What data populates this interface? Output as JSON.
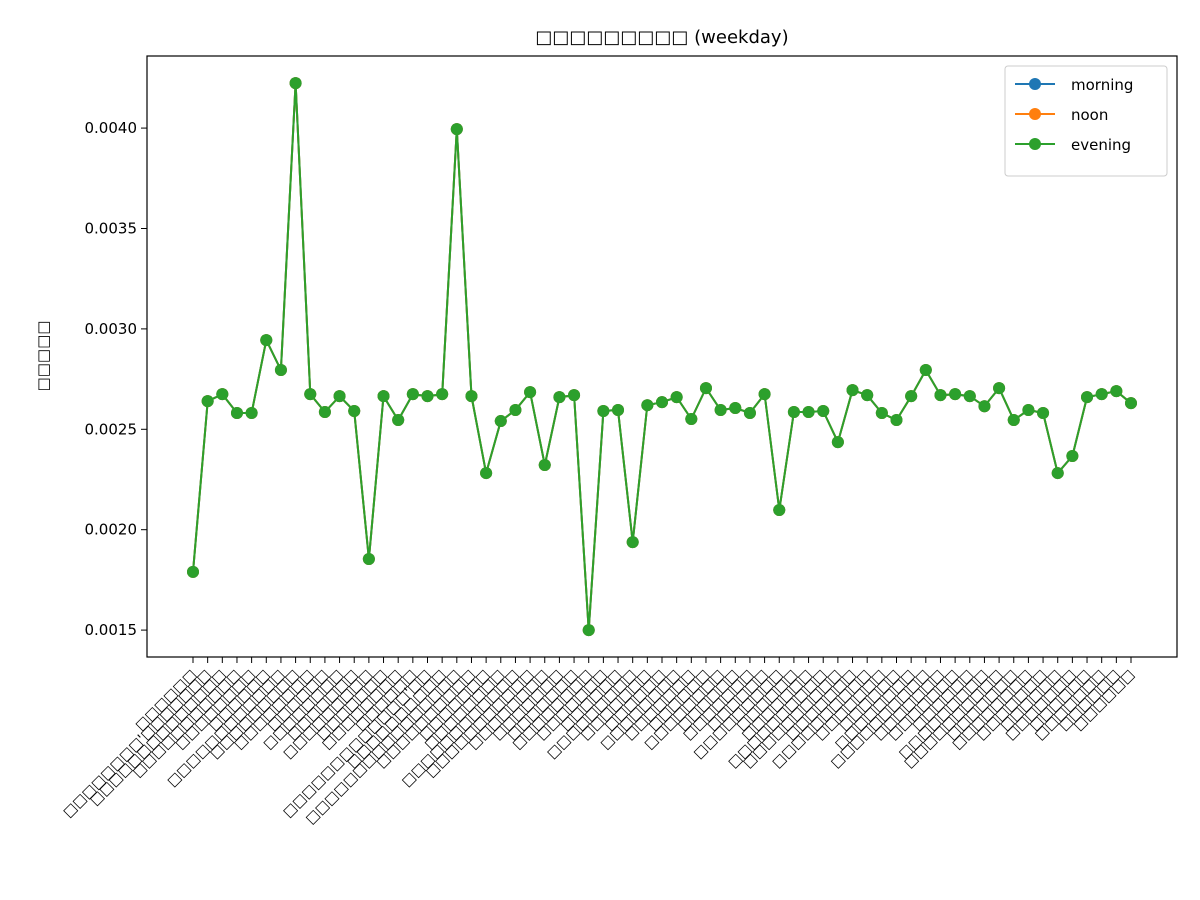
{
  "chart_data": {
    "type": "line",
    "title": "□□□□□□□□□ (weekday)",
    "y_label": "□□□□□",
    "categories": [
      "□□□□□□",
      "□□□□□□□□'□□□□□□□",
      "□□□□□□□□□□□□□□",
      "□□□□□□□□□□□",
      "□□□□□□□□",
      "□□□□□□",
      "□□□□□□□□□□□□",
      "□□□□□□□□□",
      "□□□□□□□□",
      "□□□□□□",
      "□□□□□□□□",
      "□□□□□□□",
      "□□□□□□□□□",
      "□□□□□□□",
      "□□□□□□□□",
      "□□□□□□",
      "□□□□□□□□□□□□□'□□",
      "□□□□□□□□□□",
      "□□□□□□□□□□□□□□□□",
      "□□□□□□□□□□",
      "□□□□□□□",
      "□□□□□□□□",
      "□□□□□□□□□□□□",
      "□□□□□□□□□□□",
      "□□□□□□□□",
      "□□□□□□□",
      "□□□□□□□",
      "□□□□□□□□",
      "□□□□□□□",
      "□□□□□□",
      "□□□□□□□□□",
      "□□□□□□□",
      "□□□□□□",
      "□□□□□□□□",
      "□□□□□□□",
      "□□□□□□",
      "□□□□□□□□",
      "□□□□□□",
      "□□□□□□□",
      "□□□□□□",
      "□□□□□□□□□",
      "□□□□□□",
      "□□□□□□□",
      "□□□□□□□□□□",
      "□□□□□□□□□□",
      "□□□□□□□",
      "□□□□□□□□□□",
      "□□□□□□□",
      "□□□□□□",
      "□□□□□□□□",
      "□□□□□□□□□□",
      "□□□□□□□",
      "□□□□□□□",
      "□□□□□□",
      "□□□□□□□□□",
      "□□□□□□□□□□",
      "□□□□□□□",
      "□□□□□□□□",
      "□□□□□□□",
      "□□□□□□",
      "□□□□□□□",
      "□□□□□□",
      "□□□□□□□",
      "□□□□□□",
      "□□□□□□"
    ],
    "series": [
      {
        "name": "morning",
        "color": "#1f77b4",
        "values": [
          0.00179,
          0.00264,
          0.002675,
          0.002581,
          0.002581,
          0.002944,
          0.002795,
          0.004224,
          0.002675,
          0.002586,
          0.002665,
          0.002591,
          0.001854,
          0.002665,
          0.002546,
          0.002675,
          0.002665,
          0.002675,
          0.003995,
          0.002665,
          0.002282,
          0.002541,
          0.002596,
          0.002685,
          0.002322,
          0.00266,
          0.00267,
          0.0015,
          0.002591,
          0.002596,
          0.001938,
          0.00262,
          0.002635,
          0.00266,
          0.002551,
          0.002705,
          0.002596,
          0.002606,
          0.002581,
          0.002675,
          0.002098,
          0.002586,
          0.002586,
          0.002591,
          0.002436,
          0.002695,
          0.00267,
          0.002581,
          0.002546,
          0.002665,
          0.002795,
          0.00267,
          0.002675,
          0.002665,
          0.002615,
          0.002705,
          0.002546,
          0.002596,
          0.002581,
          0.002282,
          0.002367,
          0.00266,
          0.002675,
          0.00269,
          0.00263
        ]
      },
      {
        "name": "noon",
        "color": "#ff7f0e",
        "values": [
          0.00179,
          0.00264,
          0.002675,
          0.002581,
          0.002581,
          0.002944,
          0.002795,
          0.004224,
          0.002675,
          0.002586,
          0.002665,
          0.002591,
          0.001854,
          0.002665,
          0.002546,
          0.002675,
          0.002665,
          0.002675,
          0.003995,
          0.002665,
          0.002282,
          0.002541,
          0.002596,
          0.002685,
          0.002322,
          0.00266,
          0.00267,
          0.0015,
          0.002591,
          0.002596,
          0.001938,
          0.00262,
          0.002635,
          0.00266,
          0.002551,
          0.002705,
          0.002596,
          0.002606,
          0.002581,
          0.002675,
          0.002098,
          0.002586,
          0.002586,
          0.002591,
          0.002436,
          0.002695,
          0.00267,
          0.002581,
          0.002546,
          0.002665,
          0.002795,
          0.00267,
          0.002675,
          0.002665,
          0.002615,
          0.002705,
          0.002546,
          0.002596,
          0.002581,
          0.002282,
          0.002367,
          0.00266,
          0.002675,
          0.00269,
          0.00263
        ]
      },
      {
        "name": "evening",
        "color": "#2ca02c",
        "values": [
          0.00179,
          0.00264,
          0.002675,
          0.002581,
          0.002581,
          0.002944,
          0.002795,
          0.004224,
          0.002675,
          0.002586,
          0.002665,
          0.002591,
          0.001854,
          0.002665,
          0.002546,
          0.002675,
          0.002665,
          0.002675,
          0.003995,
          0.002665,
          0.002282,
          0.002541,
          0.002596,
          0.002685,
          0.002322,
          0.00266,
          0.00267,
          0.0015,
          0.002591,
          0.002596,
          0.001938,
          0.00262,
          0.002635,
          0.00266,
          0.002551,
          0.002705,
          0.002596,
          0.002606,
          0.002581,
          0.002675,
          0.002098,
          0.002586,
          0.002586,
          0.002591,
          0.002436,
          0.002695,
          0.00267,
          0.002581,
          0.002546,
          0.002665,
          0.002795,
          0.00267,
          0.002675,
          0.002665,
          0.002615,
          0.002705,
          0.002546,
          0.002596,
          0.002581,
          0.002282,
          0.002367,
          0.00266,
          0.002675,
          0.00269,
          0.00263
        ]
      }
    ],
    "ylim": [
      0.001366,
      0.004359
    ],
    "yticks": [
      0.0015,
      {
        "value": 0.002,
        "label": "0.0020"
      },
      0.0025,
      {
        "value": 0.003,
        "label": "0.0030"
      },
      0.0035,
      {
        "value": 0.004,
        "label": "0.0040"
      }
    ],
    "legend": "upper right"
  }
}
